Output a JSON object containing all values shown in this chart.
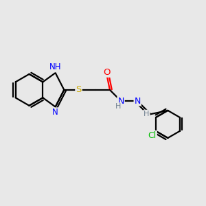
{
  "bg_color": "#e8e8e8",
  "bond_color": "#000000",
  "N_color": "#0000ff",
  "O_color": "#ff0000",
  "S_color": "#ccaa00",
  "Cl_color": "#00bb00",
  "H_color": "#708090",
  "line_width": 1.6,
  "figsize": [
    3.0,
    3.0
  ],
  "dpi": 100,
  "xlim": [
    0,
    10
  ],
  "ylim": [
    0,
    10
  ]
}
